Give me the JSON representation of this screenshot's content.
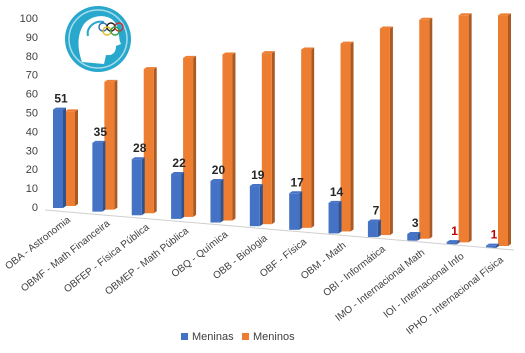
{
  "chart_data": {
    "type": "bar",
    "categories": [
      "OBA - Astronomia",
      "OBMF - Math Financeira",
      "OBFEP - Física Pública",
      "OBMEP - Math Pública",
      "OBQ - Química",
      "OBB - Biologia",
      "OBF - Física",
      "OBM - Math",
      "OBI - Informática",
      "IMO - Internacional Math",
      "IOI - Internacional Info",
      "IPHO - Internacional Física"
    ],
    "series": [
      {
        "name": "Meninas",
        "color": "#4472C4",
        "values": [
          51,
          35,
          28,
          22,
          20,
          19,
          17,
          14,
          7,
          3,
          1,
          1
        ],
        "labels": [
          "51",
          "35",
          "28",
          "22",
          "20",
          "19",
          "17",
          "14",
          "7",
          "3",
          "1",
          "1"
        ]
      },
      {
        "name": "Meninos",
        "color": "#ED7D31",
        "values": [
          49,
          65,
          72,
          78,
          80,
          81,
          83,
          86,
          93,
          97,
          99,
          99
        ]
      }
    ],
    "ylim": [
      0,
      100
    ],
    "yticks": [
      "0",
      "10",
      "20",
      "30",
      "40",
      "50",
      "60",
      "70",
      "80",
      "90",
      "100"
    ],
    "label_colors": {
      "normal": "#262626",
      "highlight": "#C00000"
    },
    "highlight_indices": [
      10,
      11
    ],
    "legend_position": "bottom",
    "grid": false
  },
  "logo": {
    "icon": "olympic-head-logo-icon",
    "color": "#29A8CE"
  }
}
